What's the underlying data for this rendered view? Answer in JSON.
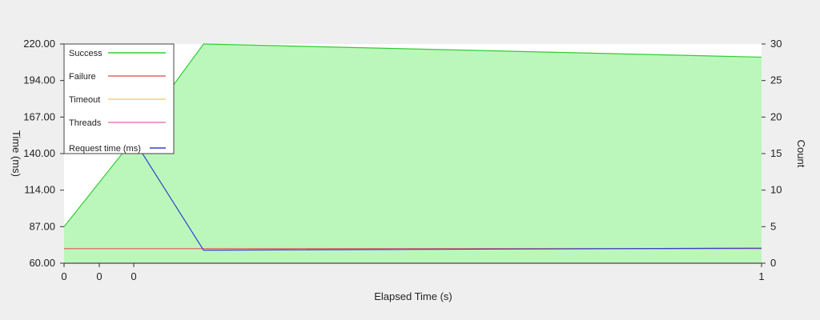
{
  "chart_data": {
    "type": "area",
    "xlabel": "Elapsed Time (s)",
    "ylabel_left": "Time (ms)",
    "ylabel_right": "Count",
    "x_ticks": [
      "0",
      "0",
      "0",
      "1"
    ],
    "y_left_ticks": [
      "60.00",
      "87.00",
      "114.00",
      "140.00",
      "167.00",
      "194.00",
      "220.00"
    ],
    "y_right_ticks": [
      "0",
      "5",
      "10",
      "15",
      "20",
      "25",
      "30"
    ],
    "y_left_range": [
      60,
      220
    ],
    "y_right_range": [
      0,
      30
    ],
    "x_range": [
      0,
      1
    ],
    "legend": {
      "placement": "top-left",
      "entries": [
        {
          "label": "Success",
          "color": "#33cc33"
        },
        {
          "label": "Failure",
          "color": "#e06666"
        },
        {
          "label": "Timeout",
          "color": "#f1d66b"
        },
        {
          "label": "Threads",
          "color": "#e47fc5"
        },
        {
          "label": "Request time (ms)",
          "color": "#3344cc"
        }
      ]
    },
    "series": [
      {
        "name": "Success",
        "axis": "right",
        "style": "area",
        "fill": "#bbf7bb",
        "stroke": "#33cc33",
        "points": [
          [
            0,
            5
          ],
          [
            0.1,
            17
          ],
          [
            0.2,
            30
          ],
          [
            1,
            28.2
          ]
        ]
      },
      {
        "name": "Failure",
        "axis": "right",
        "style": "line",
        "stroke": "#e06666",
        "points": [
          [
            0,
            2
          ],
          [
            1,
            2
          ]
        ]
      },
      {
        "name": "Timeout",
        "axis": "right",
        "style": "line",
        "stroke": "#f1d66b",
        "points": [
          [
            0,
            0
          ],
          [
            1,
            0
          ]
        ]
      },
      {
        "name": "Threads",
        "axis": "right",
        "style": "line",
        "stroke": "#e47fc5",
        "points": [
          [
            0,
            0
          ],
          [
            1,
            0
          ]
        ]
      },
      {
        "name": "Request time (ms)",
        "axis": "left",
        "style": "line",
        "stroke": "#3344cc",
        "points": [
          [
            0.1,
            150
          ],
          [
            0.2,
            69.5
          ],
          [
            1,
            71
          ]
        ]
      }
    ]
  }
}
